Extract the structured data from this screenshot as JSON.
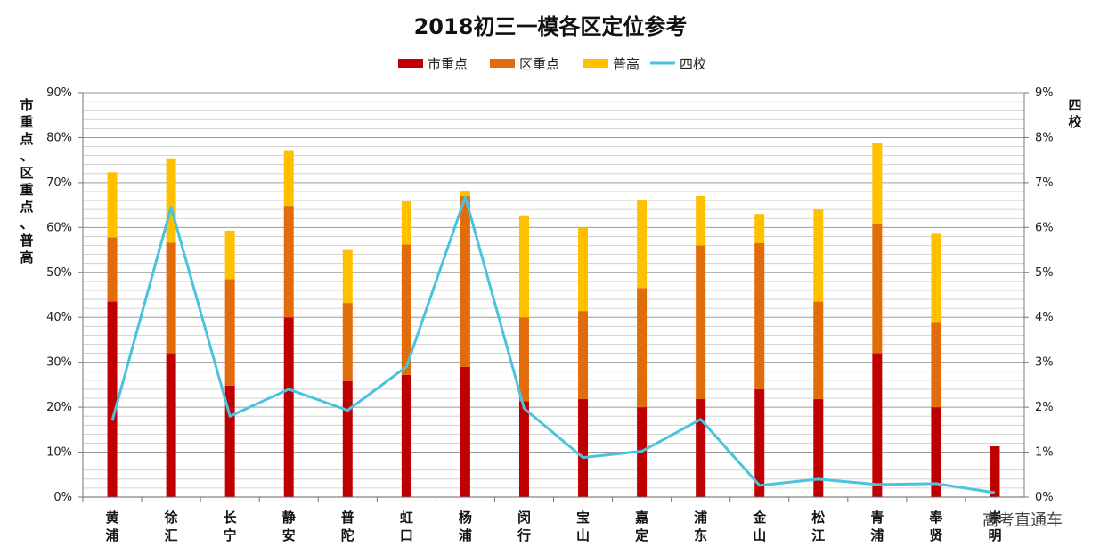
{
  "chart_data": {
    "type": "bar",
    "stacked": true,
    "title": "2018初三一模各区定位参考",
    "categories": [
      [
        "黄",
        "浦"
      ],
      [
        "徐",
        "汇"
      ],
      [
        "长",
        "宁"
      ],
      [
        "静",
        "安"
      ],
      [
        "普",
        "陀"
      ],
      [
        "虹",
        "口"
      ],
      [
        "杨",
        "浦"
      ],
      [
        "闵",
        "行"
      ],
      [
        "宝",
        "山"
      ],
      [
        "嘉",
        "定"
      ],
      [
        "浦",
        "东"
      ],
      [
        "金",
        "山"
      ],
      [
        "松",
        "江"
      ],
      [
        "青",
        "浦"
      ],
      [
        "奉",
        "贤"
      ],
      [
        "崇",
        "明"
      ]
    ],
    "series": [
      {
        "name": "市重点",
        "color": "#C00000",
        "axis": "left",
        "values": [
          43.5,
          32,
          24.8,
          40,
          25.8,
          27.2,
          29,
          21.3,
          21.8,
          20,
          21.8,
          24,
          21.8,
          32,
          20,
          11.3
        ]
      },
      {
        "name": "区重点",
        "color": "#E36C0A",
        "axis": "left",
        "values": [
          14.3,
          24.6,
          23.7,
          24.8,
          17.4,
          29,
          38,
          18.7,
          19.6,
          26.5,
          34.2,
          32.5,
          21.7,
          28.8,
          18.8,
          0
        ]
      },
      {
        "name": "普高",
        "color": "#FFC000",
        "axis": "left",
        "values": [
          14.5,
          18.8,
          10.8,
          12.4,
          11.8,
          9.6,
          1.2,
          22.7,
          18.6,
          19.5,
          11,
          6.5,
          20.5,
          18,
          19.8,
          0
        ]
      },
      {
        "name": "四校",
        "color": "#4BC3DC",
        "type": "line",
        "axis": "right",
        "values": [
          1.7,
          6.45,
          1.8,
          2.4,
          1.93,
          2.9,
          6.68,
          1.97,
          0.88,
          1.02,
          1.73,
          0.26,
          0.4,
          0.28,
          0.3,
          0.1
        ]
      }
    ],
    "y_left": {
      "label": [
        "市",
        "重",
        "点",
        "、",
        "区",
        "重",
        "点",
        "、",
        "普",
        "高"
      ],
      "range": [
        0,
        90
      ],
      "step": 10,
      "unit": "%"
    },
    "y_right": {
      "label": [
        "四",
        "校"
      ],
      "range": [
        0,
        9
      ],
      "step": 1,
      "unit": "%"
    },
    "legend_position": "top",
    "grid": true
  },
  "watermark": "高考直通车"
}
